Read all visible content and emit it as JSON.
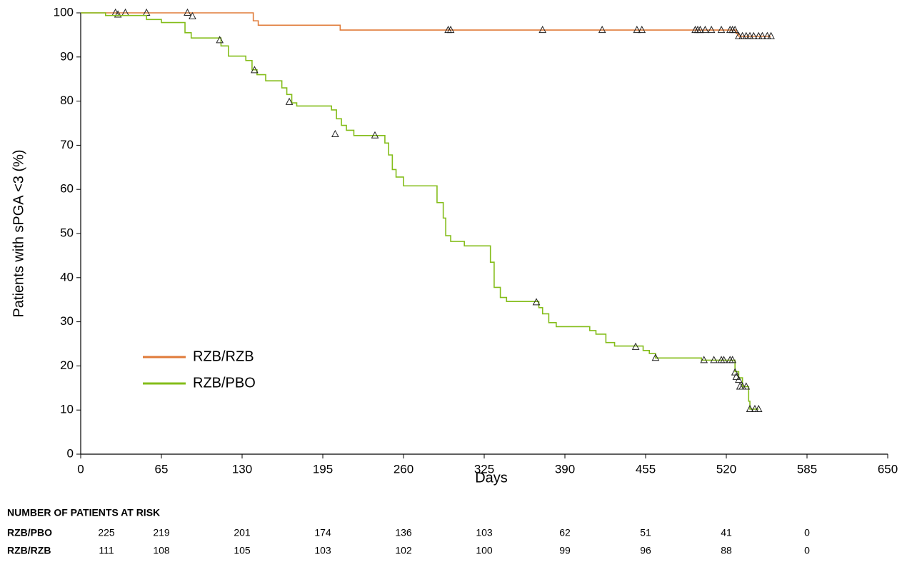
{
  "chart_data": {
    "type": "step",
    "xlabel": "Days",
    "ylabel": "Patients with sPGA <3 (%)",
    "xlim": [
      0,
      650
    ],
    "ylim": [
      0,
      100
    ],
    "xticks": [
      0,
      65,
      130,
      195,
      260,
      325,
      390,
      455,
      520,
      585,
      650
    ],
    "yticks": [
      0,
      10,
      20,
      30,
      40,
      50,
      60,
      70,
      80,
      90,
      100
    ],
    "legend": "lower left",
    "series": [
      {
        "name": "RZB/RZB",
        "color": "#e07b39",
        "x": [
          0,
          139,
          143,
          209,
          528,
          530,
          556
        ],
        "y": [
          100,
          98.2,
          97.2,
          96.1,
          95.3,
          94.7,
          94.7
        ],
        "censored": {
          "x": [
            28,
            30,
            36,
            53,
            86,
            90,
            296,
            298,
            372,
            420,
            448,
            452,
            495,
            497,
            499,
            503,
            508,
            516,
            523,
            525,
            527,
            530,
            533,
            536,
            539,
            542,
            546,
            549,
            553,
            556
          ],
          "y": [
            100,
            99.6,
            100,
            100,
            100,
            99.2,
            96.1,
            96.1,
            96.1,
            96.1,
            96.1,
            96.1,
            96.1,
            96.1,
            96.1,
            96.1,
            96.1,
            96.1,
            96.1,
            96.1,
            96.1,
            94.7,
            94.7,
            94.7,
            94.7,
            94.7,
            94.7,
            94.7,
            94.7,
            94.7
          ]
        }
      },
      {
        "name": "RZB/PBO",
        "color": "#84bd1a",
        "x": [
          0,
          20,
          53,
          65,
          84,
          89,
          113,
          119,
          133,
          138,
          142,
          149,
          162,
          166,
          170,
          174,
          202,
          206,
          210,
          214,
          220,
          245,
          248,
          251,
          254,
          260,
          287,
          292,
          294,
          298,
          309,
          330,
          333,
          338,
          343,
          369,
          372,
          377,
          383,
          410,
          415,
          423,
          430,
          453,
          458,
          463,
          500,
          527,
          530,
          533,
          538,
          539,
          546
        ],
        "y": [
          100,
          99.4,
          98.5,
          97.8,
          95.5,
          94.3,
          92.5,
          90.2,
          89.2,
          87.1,
          86,
          84.6,
          83,
          81.5,
          79.6,
          78.9,
          78,
          76,
          74.5,
          73.4,
          72.2,
          70.5,
          67.8,
          64.5,
          62.8,
          60.8,
          57,
          53.5,
          49.5,
          48.2,
          47.2,
          43.5,
          37.8,
          35.5,
          34.6,
          33.2,
          31.8,
          29.8,
          28.9,
          28,
          27.2,
          25.3,
          24.5,
          23.5,
          22.8,
          21.8,
          21.3,
          18.7,
          17.3,
          15.3,
          12,
          10.2,
          10.2
        ],
        "censored": {
          "x": [
            112,
            140,
            168,
            205,
            237,
            367,
            447,
            463,
            502,
            510,
            516,
            518,
            523,
            525,
            527,
            528,
            530,
            531,
            533,
            536,
            539,
            543,
            546
          ],
          "y": [
            93.8,
            87,
            79.8,
            72.5,
            72.2,
            34.4,
            24.3,
            21.8,
            21.3,
            21.3,
            21.3,
            21.3,
            21.3,
            21.3,
            18.5,
            17.5,
            16.8,
            15.3,
            15.3,
            15.3,
            10.2,
            10.2,
            10.2
          ]
        }
      }
    ],
    "risk_table": {
      "title": "NUMBER OF PATIENTS AT RISK",
      "rows": [
        {
          "name": "RZB/PBO",
          "values": [
            225,
            219,
            201,
            174,
            136,
            103,
            62,
            51,
            41,
            0
          ]
        },
        {
          "name": "RZB/RZB",
          "values": [
            111,
            108,
            105,
            103,
            102,
            100,
            99,
            96,
            88,
            0
          ]
        }
      ]
    }
  }
}
